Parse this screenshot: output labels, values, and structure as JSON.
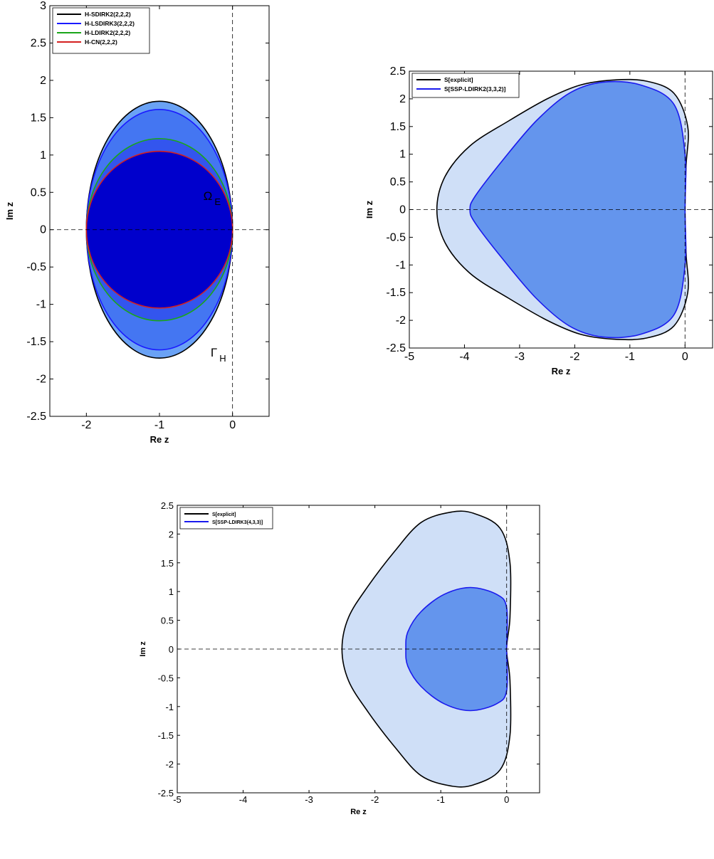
{
  "chart_data": [
    {
      "type": "area",
      "xlabel": "Re z",
      "ylabel": "Im z",
      "xlim": [
        -2.5,
        0.5
      ],
      "ylim": [
        -2.5,
        3
      ],
      "xticks": [
        "-2",
        "-1",
        "0"
      ],
      "yticks": [
        "-2.5",
        "-2",
        "-1.5",
        "-1",
        "-0.5",
        "0",
        "0.5",
        "1",
        "1.5",
        "2",
        "2.5",
        "3"
      ],
      "legend_position": "top-left",
      "grid": false,
      "reference_lines": {
        "x": 0,
        "y": 0,
        "style": "dashed"
      },
      "annotations": [
        {
          "text": "Ω",
          "subscript": "E",
          "x": -0.4,
          "y": 0.4
        },
        {
          "text": "Γ",
          "subscript": "H",
          "x": -0.3,
          "y": -1.7
        }
      ],
      "series": [
        {
          "name": "H-SDIRK2(2,2,2)",
          "color": "#000000",
          "fill": "#6aa2f5",
          "shape": "ellipse",
          "center": [
            -1,
            0
          ],
          "rx": 1,
          "ry": 1.72
        },
        {
          "name": "H-LSDIRK3(2,2,2)",
          "color": "#1a1aff",
          "fill": "#4476f2",
          "shape": "ellipse",
          "center": [
            -1,
            0
          ],
          "rx": 1,
          "ry": 1.61
        },
        {
          "name": "H-LDIRK2(2,2,2)",
          "color": "#1aa61a",
          "fill": "#3355ee",
          "shape": "ellipse",
          "center": [
            -1,
            0
          ],
          "rx": 1,
          "ry": 1.22
        },
        {
          "name": "H-CN(2,2,2)",
          "color": "#d42020",
          "fill": "#0000cc",
          "shape": "ellipse",
          "center": [
            -1,
            0
          ],
          "rx": 1,
          "ry": 1.05
        }
      ]
    },
    {
      "type": "area",
      "xlabel": "Re z",
      "ylabel": "Im z",
      "xlim": [
        -5,
        0.5
      ],
      "ylim": [
        -2.5,
        2.5
      ],
      "xticks": [
        "-5",
        "-4",
        "-3",
        "-2",
        "-1",
        "0"
      ],
      "yticks": [
        "-2.5",
        "-2",
        "-1.5",
        "-1",
        "-0.5",
        "0",
        "0.5",
        "1",
        "1.5",
        "2",
        "2.5"
      ],
      "legend_position": "top-left",
      "grid": false,
      "reference_lines": {
        "x": 0,
        "y": 0,
        "style": "dashed"
      },
      "series": [
        {
          "name": "S[explicit]",
          "color": "#000000",
          "fill": "#cfdff7",
          "points": [
            [
              0,
              0
            ],
            [
              0.02,
              0.8
            ],
            [
              0.05,
              1.5
            ],
            [
              -0.2,
              2.1
            ],
            [
              -0.7,
              2.32
            ],
            [
              -1.3,
              2.34
            ],
            [
              -1.9,
              2.25
            ],
            [
              -2.5,
              2.0
            ],
            [
              -3.2,
              1.6
            ],
            [
              -3.9,
              1.15
            ],
            [
              -4.35,
              0.6
            ],
            [
              -4.5,
              0
            ]
          ]
        },
        {
          "name": "S[SSP-LDIRK2(3,3,2)]",
          "color": "#1a1aee",
          "fill": "#6495ed",
          "points": [
            [
              0,
              0
            ],
            [
              0,
              1.0
            ],
            [
              -0.2,
              1.9
            ],
            [
              -0.8,
              2.25
            ],
            [
              -1.5,
              2.3
            ],
            [
              -2.1,
              2.1
            ],
            [
              -2.7,
              1.6
            ],
            [
              -3.3,
              0.9
            ],
            [
              -3.8,
              0.25
            ],
            [
              -3.9,
              0
            ]
          ]
        }
      ]
    },
    {
      "type": "area",
      "xlabel": "Re z",
      "ylabel": "Im z",
      "xlim": [
        -5,
        0.5
      ],
      "ylim": [
        -2.5,
        2.5
      ],
      "xticks": [
        "-5",
        "-4",
        "-3",
        "-2",
        "-1",
        "0"
      ],
      "yticks": [
        "-2.5",
        "-2",
        "-1.5",
        "-1",
        "-0.5",
        "0",
        "0.5",
        "1",
        "1.5",
        "2",
        "2.5"
      ],
      "legend_position": "top-left",
      "grid": false,
      "reference_lines": {
        "x": 0,
        "y": 0,
        "style": "dashed"
      },
      "series": [
        {
          "name": "S[explicit]",
          "color": "#000000",
          "fill": "#cfdff7",
          "points": [
            [
              0,
              0
            ],
            [
              0.05,
              0.55
            ],
            [
              0.05,
              1.5
            ],
            [
              -0.1,
              2.1
            ],
            [
              -0.5,
              2.36
            ],
            [
              -0.85,
              2.38
            ],
            [
              -1.3,
              2.2
            ],
            [
              -1.7,
              1.7
            ],
            [
              -2.1,
              1.1
            ],
            [
              -2.4,
              0.55
            ],
            [
              -2.5,
              0
            ]
          ]
        },
        {
          "name": "S[SSP-LDIRK3(4,3,3)]",
          "color": "#1a1aee",
          "fill": "#6495ed",
          "points": [
            [
              0,
              0
            ],
            [
              0,
              0.72
            ],
            [
              -0.15,
              0.95
            ],
            [
              -0.55,
              1.07
            ],
            [
              -0.95,
              0.95
            ],
            [
              -1.3,
              0.65
            ],
            [
              -1.5,
              0.3
            ],
            [
              -1.53,
              0
            ]
          ]
        }
      ]
    }
  ]
}
